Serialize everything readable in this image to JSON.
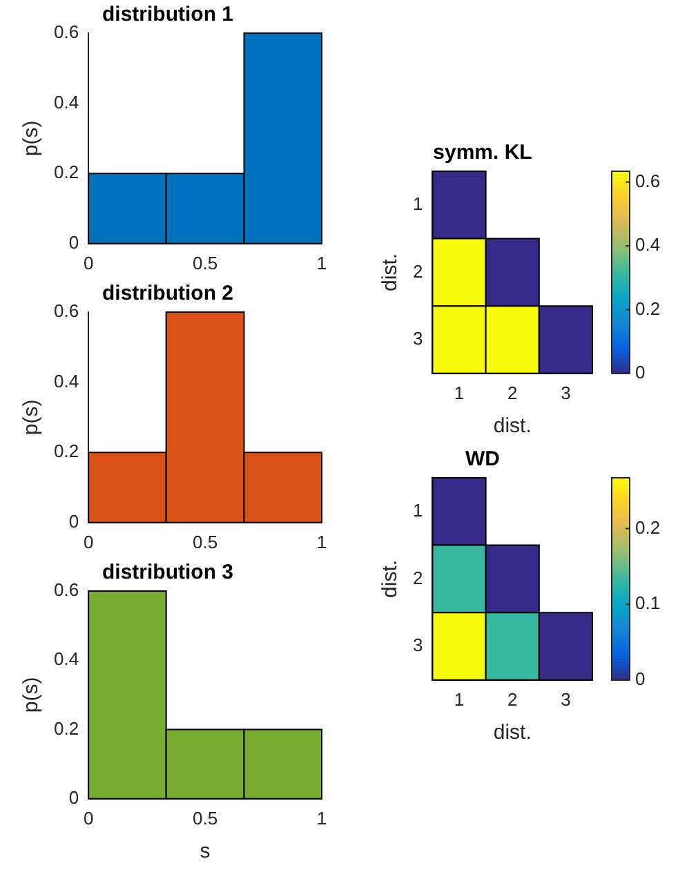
{
  "chart_data": [
    {
      "type": "histogram",
      "title": "distribution 1",
      "ylabel": "p(s)",
      "bins": [
        0,
        0.333,
        0.667,
        1
      ],
      "values": [
        0.2,
        0.2,
        0.6
      ],
      "color": "#0072bd",
      "xlim": [
        0,
        1
      ],
      "xticks": [
        0,
        0.5,
        1
      ],
      "ylim": [
        0,
        0.6
      ],
      "yticks": [
        0,
        0.2,
        0.4,
        0.6
      ]
    },
    {
      "type": "histogram",
      "title": "distribution 2",
      "ylabel": "p(s)",
      "bins": [
        0,
        0.333,
        0.667,
        1
      ],
      "values": [
        0.2,
        0.6,
        0.2
      ],
      "color": "#d95319",
      "xlim": [
        0,
        1
      ],
      "xticks": [
        0,
        0.5,
        1
      ],
      "ylim": [
        0,
        0.6
      ],
      "yticks": [
        0,
        0.2,
        0.4,
        0.6
      ]
    },
    {
      "type": "histogram",
      "title": "distribution 3",
      "xlabel": "s",
      "ylabel": "p(s)",
      "bins": [
        0,
        0.333,
        0.667,
        1
      ],
      "values": [
        0.6,
        0.2,
        0.2
      ],
      "color": "#77ac30",
      "xlim": [
        0,
        1
      ],
      "xticks": [
        0,
        0.5,
        1
      ],
      "ylim": [
        0,
        0.6
      ],
      "yticks": [
        0,
        0.2,
        0.4,
        0.6
      ]
    },
    {
      "type": "heatmap",
      "title": "symm. KL",
      "xlabel": "dist.",
      "ylabel": "dist.",
      "categories": [
        "1",
        "2",
        "3"
      ],
      "y_categories": [
        "1",
        "2",
        "3"
      ],
      "cells": [
        [
          0,
          null,
          null
        ],
        [
          0.634,
          0,
          null
        ],
        [
          0.634,
          0.634,
          0
        ]
      ],
      "clim": [
        0,
        0.634
      ],
      "cticks": [
        0,
        0.2,
        0.4,
        0.6
      ]
    },
    {
      "type": "heatmap",
      "title": "WD",
      "xlabel": "dist.",
      "ylabel": "dist.",
      "categories": [
        "1",
        "2",
        "3"
      ],
      "y_categories": [
        "1",
        "2",
        "3"
      ],
      "cells": [
        [
          0,
          null,
          null
        ],
        [
          0.133,
          0,
          null
        ],
        [
          0.267,
          0.133,
          0
        ]
      ],
      "clim": [
        0,
        0.267
      ],
      "cticks": [
        0,
        0.1,
        0.2
      ]
    }
  ]
}
